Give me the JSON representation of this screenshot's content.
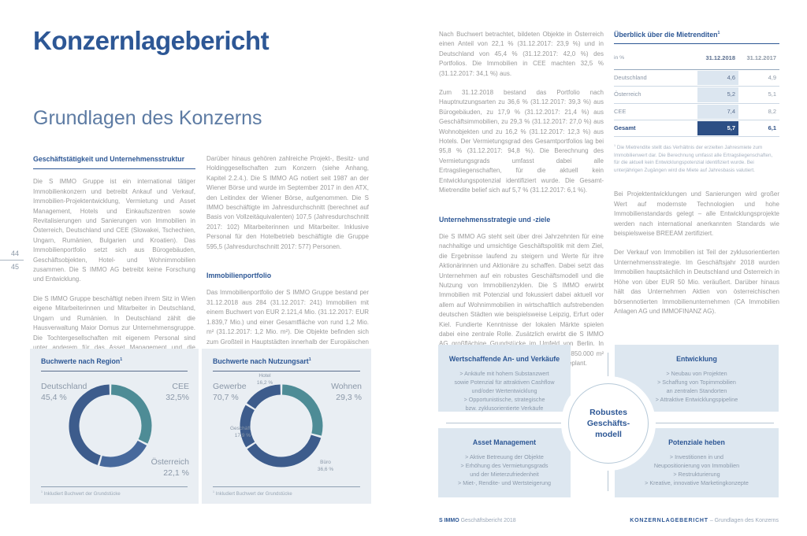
{
  "page": {
    "title": "Konzernlagebericht",
    "subtitle": "Grundlagen des Konzerns",
    "page_number_top": "44",
    "page_number_bottom": "45"
  },
  "columns": {
    "col1": {
      "heading": "Geschäftstätigkeit und Unternehmensstruktur",
      "p1": "Die S IMMO Gruppe ist ein international tätiger Immobilienkonzern und betreibt Ankauf und Verkauf, Immobilien-Projektentwicklung, Vermietung und Asset Management, Hotels und Einkaufszentren sowie Revitalisierungen und Sanierungen von Immobilien in Österreich, Deutschland und CEE (Slowakei, Tschechien, Ungarn, Rumänien, Bulgarien und Kroatien). Das Immobilienportfolio setzt sich aus Bürogebäuden, Geschäftsobjekten, Hotel- und Wohnimmobilien zusammen. Die S IMMO AG betreibt keine Forschung und Entwicklung.",
      "p2": "Die S IMMO Gruppe beschäftigt neben ihrem Sitz in Wien eigene Mitarbeiterinnen und Mitarbeiter in Deutschland, Ungarn und Rumänien. In Deutschland zählt die Hausverwaltung Maior Domus zur Unternehmensgruppe. Die Tochtergesellschaften mit eigenem Personal sind unter anderem für das Asset Management und die Vermietungsaktivitäten vor Ort zuständig."
    },
    "col2": {
      "p1": "Darüber hinaus gehören zahlreiche Projekt-, Besitz- und Holdinggesellschaften zum Konzern (siehe Anhang, Kapitel 2.2.4.). Die S IMMO AG notiert seit 1987 an der Wiener Börse und wurde im September 2017 in den ATX, den Leitindex der Wiener Börse, aufgenommen. Die S IMMO beschäftigte im Jahresdurchschnitt (berechnet auf Basis von Vollzeitäquivalenten) 107,5 (Jahresdurchschnitt 2017: 102) Mitarbeiterinnen und Mitarbeiter. Inklusive Personal für den Hotelbetrieb beschäftigte die Gruppe 595,5 (Jahresdurchschnitt 2017: 577) Personen.",
      "heading": "Immobilienportfolio",
      "p2": "Das Immobilienportfolio der S IMMO Gruppe bestand per 31.12.2018 aus 284 (31.12.2017: 241) Immobilien mit einem Buchwert von EUR 2.121,4 Mio. (31.12.2017: EUR 1.839,7 Mio.) und einer Gesamtfläche von rund 1,2 Mio. m² (31.12.2017: 1,2 Mio. m²). Die Objekte befinden sich zum Großteil in Hauptstädten innerhalb der Europäischen Union."
    },
    "col3": {
      "p1": "Nach Buchwert betrachtet, bildeten Objekte in Österreich einen Anteil von 22,1 % (31.12.2017: 23,9 %) und in Deutschland von 45,4 % (31.12.2017: 42,0 %) des Portfolios. Die Immobilien in CEE machten 32,5 % (31.12.2017: 34,1 %) aus.",
      "p2": "Zum 31.12.2018 bestand das Portfolio nach Hauptnutzungsarten zu 36,6 % (31.12.2017: 39,3 %) aus Bürogebäuden, zu 17,9 % (31.12.2017: 21,4 %) aus Geschäftsimmobilien, zu 29,3 % (31.12.2017: 27,0 %) aus Wohnobjekten und zu 16,2 % (31.12.2017: 12,3 %) aus Hotels. Der Vermietungsgrad des Gesamtportfolios lag bei 95,8 % (31.12.2017: 94,8 %). Die Berechnung des Vermietungsgrads umfasst dabei alle Ertragsliegenschaften, für die aktuell kein Entwicklungspotenzial identifiziert wurde. Die Gesamt-Mietrendite belief sich auf 5,7 % (31.12.2017: 6,1 %).",
      "heading": "Unternehmensstrategie und -ziele",
      "p3": "Die S IMMO AG steht seit über drei Jahrzehnten für eine nachhaltige und umsichtige Geschäftspolitik mit dem Ziel, die Ergebnisse laufend zu steigern und Werte für ihre Aktionärinnen und Aktionäre zu schaffen. Dabei setzt das Unternehmen auf ein robustes Geschäftsmodell und die Nutzung von Immobilienzyklen. Die S IMMO erwirbt Immobilien mit Potenzial und fokussiert dabei aktuell vor allem auf Wohnimmobilien in wirtschaftlich aufstrebenden deutschen Städten wie beispielsweise Leipzig, Erfurt oder Kiel. Fundierte Kenntnisse der lokalen Märkte spielen dabei eine zentrale Rolle. Zusätzlich erwirbt die S IMMO AG großflächige Grundstücke im Umfeld von Berlin. In Summe wurden in den letzten Monaten rund 850.000 m² Fläche angekauft. Weitere Investitionen sind geplant."
    },
    "col4": {
      "p1": "Bei Projektentwicklungen und Sanierungen wird großer Wert auf modernste Technologien und hohe Immobilienstandards gelegt – alle Entwicklungsprojekte werden nach international anerkannten Standards wie beispielsweise BREEAM zertifiziert.",
      "p2": "Der Verkauf von Immobilien ist Teil der zyklusorientierten Unternehmensstrategie. Im Geschäftsjahr 2018 wurden Immobilien hauptsächlich in Deutschland und Österreich in Höhe von über EUR 50 Mio. veräußert. Darüber hinaus hält das Unternehmen Aktien von österreichischen börsennotierten Immobilienunternehmen (CA Immobilien Anlagen AG und IMMOFINANZ AG)."
    }
  },
  "table": {
    "title": "Überblick über die Mietrenditen",
    "title_marker": "1",
    "unit_label": "in %",
    "col_headers": [
      "31.12.2018",
      "31.12.2017"
    ],
    "rows": [
      {
        "label": "Deutschland",
        "v2018": "4,6",
        "v2017": "4,9"
      },
      {
        "label": "Österreich",
        "v2018": "5,2",
        "v2017": "5,1"
      },
      {
        "label": "CEE",
        "v2018": "7,4",
        "v2017": "8,2"
      },
      {
        "label": "Gesamt",
        "v2018": "5,7",
        "v2017": "6,1"
      }
    ],
    "footnote_marker": "1",
    "footnote": "Die Mietrendite stellt das Verhältnis der erzielten Jahresmiete zum Immobilienwert dar. Die Berechnung umfasst alle Ertragsliegenschaften, für die aktuell kein Entwicklungspotenzial identifiziert wurde. Bei unterjährigen Zugängen wird die Miete auf Jahresbasis valutiert."
  },
  "chart_data": [
    {
      "type": "donut",
      "title": "Buchwerte nach Region",
      "title_marker": "1",
      "unit": "%",
      "segments": [
        {
          "label": "CEE",
          "value": 32.5,
          "display": "32,5%",
          "color": "#4e8c96"
        },
        {
          "label": "Österreich",
          "value": 22.1,
          "display": "22,1 %",
          "color": "#47699c"
        },
        {
          "label": "Deutschland",
          "value": 45.4,
          "display": "45,4 %",
          "color": "#3d5c8c"
        }
      ],
      "footnote_marker": "1",
      "footnote": "Inkludiert Buchwert der Grundstücke"
    },
    {
      "type": "donut",
      "title": "Buchwerte nach Nutzungsart",
      "title_marker": "1",
      "unit": "%",
      "group_label": {
        "label": "Gewerbe",
        "value": 70.7,
        "display": "70,7 %"
      },
      "segments": [
        {
          "label": "Wohnen",
          "value": 29.3,
          "display": "29,3 %",
          "color": "#4e8c96"
        },
        {
          "label": "Büro",
          "value": 36.6,
          "display": "36,6 %",
          "color": "#3d5c8c"
        },
        {
          "label": "Geschäft",
          "value": 17.9,
          "display": "17,9 %",
          "color": "#3d5c8c"
        },
        {
          "label": "Hotel",
          "value": 16.2,
          "display": "16,2 %",
          "color": "#3d5c8c"
        }
      ],
      "footnote_marker": "1",
      "footnote": "Inkludiert Buchwert der Grundstücke"
    }
  ],
  "diagram": {
    "center_lines": [
      "Robustes",
      "Geschäfts-",
      "modell"
    ],
    "quadrants": [
      {
        "title": "Wertschaffende An- und Verkäufe",
        "items": [
          "> Ankäufe mit hohem Substanzwert",
          "sowie Potenzial für attraktiven Cashflow",
          "und/oder Wertentwicklung",
          "> Opportunistische, strategische",
          "bzw. zyklusorientierte Verkäufe"
        ]
      },
      {
        "title": "Entwicklung",
        "items": [
          "> Neubau von Projekten",
          "> Schaffung von Topimmobilien",
          "an zentralen Standorten",
          "> Attraktive Entwicklungspipeline"
        ]
      },
      {
        "title": "Asset Management",
        "items": [
          "> Aktive Betreuung der Objekte",
          "> Erhöhung des Vermietungsgrads",
          "und der Mieterzufriedenheit",
          "> Miet-, Rendite- und Wertsteigerung"
        ]
      },
      {
        "title": "Potenziale heben",
        "items": [
          "> Investitionen in und",
          "Neupositionierung von Immobilien",
          "> Restrukturierung",
          "> Kreative, innovative Marketingkonzepte"
        ]
      }
    ]
  },
  "footer": {
    "brand": "S IMMO",
    "brand_suffix": " Geschäftsbericht 2018",
    "section": "KONZERNLAGEBERICHT",
    "section_suffix": " – Grundlagen des Konzerns"
  },
  "colors": {
    "accent_blue": "#2d5795",
    "table_navy": "#2d4f85",
    "table_band": "#dce6f0",
    "donut_navy": "#3d5c8c",
    "donut_blue": "#47699c",
    "donut_teal": "#4e8c96",
    "panel_bg": "#e9eef3",
    "diagram_box_bg": "#dde7f0"
  }
}
